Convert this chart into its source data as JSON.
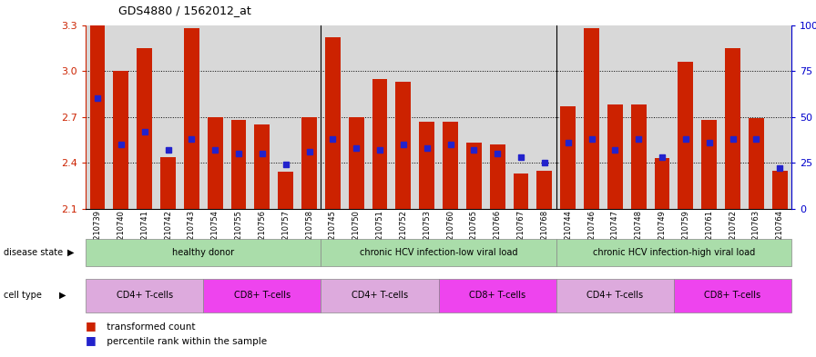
{
  "title": "GDS4880 / 1562012_at",
  "samples": [
    "GSM1210739",
    "GSM1210740",
    "GSM1210741",
    "GSM1210742",
    "GSM1210743",
    "GSM1210754",
    "GSM1210755",
    "GSM1210756",
    "GSM1210757",
    "GSM1210758",
    "GSM1210745",
    "GSM1210750",
    "GSM1210751",
    "GSM1210752",
    "GSM1210753",
    "GSM1210760",
    "GSM1210765",
    "GSM1210766",
    "GSM1210767",
    "GSM1210768",
    "GSM1210744",
    "GSM1210746",
    "GSM1210747",
    "GSM1210748",
    "GSM1210749",
    "GSM1210759",
    "GSM1210761",
    "GSM1210762",
    "GSM1210763",
    "GSM1210764"
  ],
  "bar_heights": [
    3.3,
    3.0,
    3.15,
    2.44,
    3.28,
    2.7,
    2.68,
    2.65,
    2.34,
    2.7,
    3.22,
    2.7,
    2.95,
    2.93,
    2.67,
    2.67,
    2.53,
    2.52,
    2.33,
    2.35,
    2.77,
    3.28,
    2.78,
    2.78,
    2.43,
    3.06,
    2.68,
    3.15,
    2.69,
    2.35
  ],
  "percentile_ranks": [
    0.6,
    0.35,
    0.42,
    0.32,
    0.38,
    0.32,
    0.3,
    0.3,
    0.24,
    0.31,
    0.38,
    0.33,
    0.32,
    0.35,
    0.33,
    0.35,
    0.32,
    0.3,
    0.28,
    0.25,
    0.36,
    0.38,
    0.32,
    0.38,
    0.28,
    0.38,
    0.36,
    0.38,
    0.38,
    0.22
  ],
  "ymin": 2.1,
  "ymax": 3.3,
  "yticks": [
    2.1,
    2.4,
    2.7,
    3.0,
    3.3
  ],
  "bar_color": "#cc2200",
  "dot_color": "#2222cc",
  "background_color": "#d8d8d8",
  "disease_state_groups": [
    {
      "label": "healthy donor",
      "start": 0,
      "end": 9,
      "color": "#aaddaa"
    },
    {
      "label": "chronic HCV infection-low viral load",
      "start": 10,
      "end": 19,
      "color": "#aaddaa"
    },
    {
      "label": "chronic HCV infection-high viral load",
      "start": 20,
      "end": 29,
      "color": "#aaddaa"
    }
  ],
  "cell_type_groups": [
    {
      "label": "CD4+ T-cells",
      "start": 0,
      "end": 4,
      "color": "#ddaadd"
    },
    {
      "label": "CD8+ T-cells",
      "start": 5,
      "end": 9,
      "color": "#ee44ee"
    },
    {
      "label": "CD4+ T-cells",
      "start": 10,
      "end": 14,
      "color": "#ddaadd"
    },
    {
      "label": "CD8+ T-cells",
      "start": 15,
      "end": 19,
      "color": "#ee44ee"
    },
    {
      "label": "CD4+ T-cells",
      "start": 20,
      "end": 24,
      "color": "#ddaadd"
    },
    {
      "label": "CD8+ T-cells",
      "start": 25,
      "end": 29,
      "color": "#ee44ee"
    }
  ],
  "right_yticks": [
    0,
    25,
    50,
    75,
    100
  ],
  "right_ylabels": [
    "0",
    "25",
    "50",
    "75",
    "100%"
  ]
}
